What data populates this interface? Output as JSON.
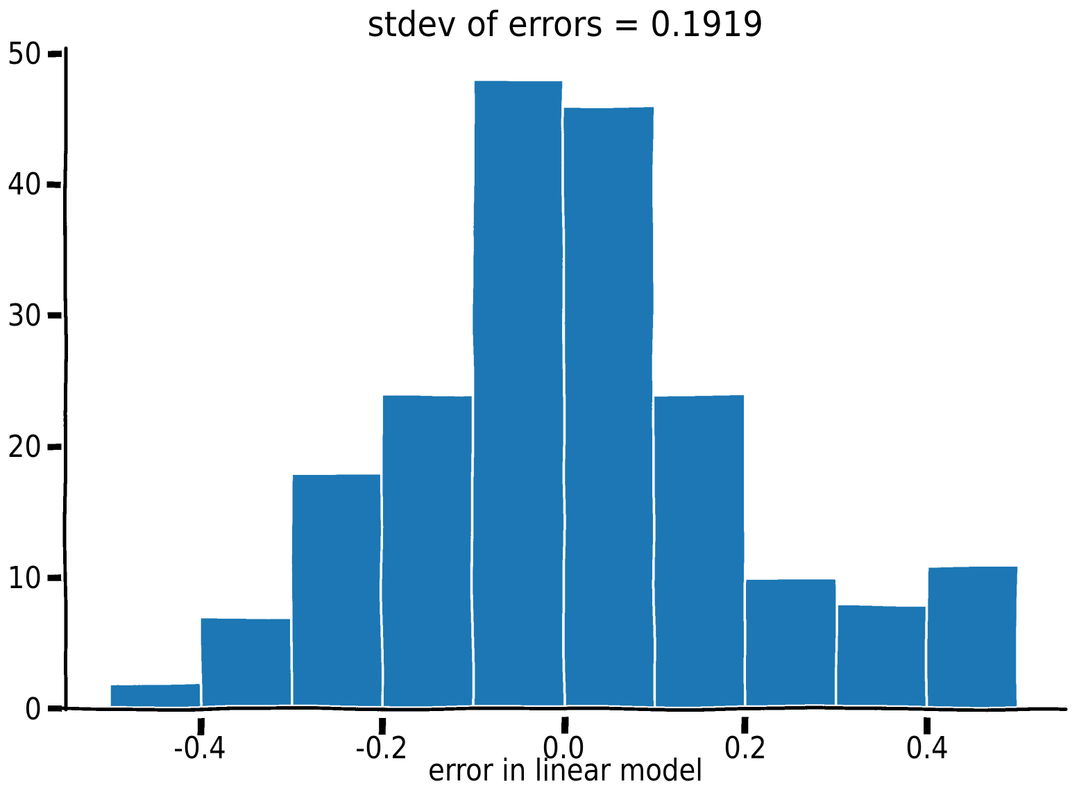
{
  "chart_data": {
    "type": "bar",
    "subtype": "histogram",
    "style": "xkcd-hand-drawn",
    "title": "stdev of errors = 0.1919",
    "xlabel": "error in linear model",
    "ylabel": "",
    "bar_color": "#1f77b4",
    "bar_edge_color": "#ffffff",
    "axis_color": "#000000",
    "background_color": "#ffffff",
    "grid": false,
    "legend": null,
    "bin_edges": [
      -0.5,
      -0.4,
      -0.3,
      -0.2,
      -0.1,
      0.0,
      0.1,
      0.2,
      0.3,
      0.4,
      0.5
    ],
    "counts": [
      2,
      7,
      18,
      24,
      48,
      46,
      24,
      10,
      8,
      11
    ],
    "xticks": [
      {
        "value": -0.4,
        "label": "-0.4"
      },
      {
        "value": -0.2,
        "label": "-0.2"
      },
      {
        "value": 0.0,
        "label": "0.0"
      },
      {
        "value": 0.2,
        "label": "0.2"
      },
      {
        "value": 0.4,
        "label": "0.4"
      }
    ],
    "yticks": [
      {
        "value": 0,
        "label": "0"
      },
      {
        "value": 10,
        "label": "10"
      },
      {
        "value": 20,
        "label": "20"
      },
      {
        "value": 30,
        "label": "30"
      },
      {
        "value": 40,
        "label": "40"
      },
      {
        "value": 50,
        "label": "50"
      }
    ],
    "xlim": [
      -0.556,
      0.556
    ],
    "ylim": [
      0,
      50
    ]
  }
}
